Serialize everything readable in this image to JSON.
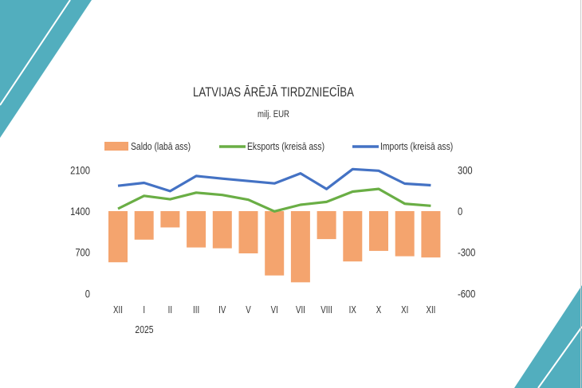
{
  "colors": {
    "saldo": "#F4A46E",
    "eksports": "#6AAE45",
    "imports": "#4472C4",
    "accent": "#52AEBE"
  },
  "chart_data": {
    "type": "bar+line",
    "title": "LATVIJAS ĀRĒJĀ TIRDZNIECĪBA",
    "subtitle": "milj. EUR",
    "categories": [
      "XII",
      "I",
      "II",
      "III",
      "IV",
      "V",
      "VI",
      "VII",
      "VIII",
      "IX",
      "X",
      "XI",
      "XII"
    ],
    "year_label": "2025",
    "left_axis": {
      "ticks": [
        "0",
        "700",
        "1400",
        "2100"
      ],
      "range": [
        0,
        2100
      ]
    },
    "right_axis": {
      "ticks": [
        "-600",
        "-300",
        "0",
        "300"
      ],
      "range": [
        -600,
        300
      ]
    },
    "legend_position": "top",
    "series": [
      {
        "name": "Saldo (labā ass)",
        "type": "bar",
        "axis": "right",
        "values": [
          -373,
          -208,
          -119,
          -265,
          -271,
          -308,
          -469,
          -519,
          -204,
          -367,
          -290,
          -329,
          -338
        ]
      },
      {
        "name": "Eksports (kreisā ass)",
        "type": "line",
        "axis": "left",
        "values": [
          1440,
          1660,
          1602,
          1714,
          1674,
          1593,
          1396,
          1508,
          1557,
          1732,
          1777,
          1526,
          1490
        ]
      },
      {
        "name": "Imports (kreisā ass)",
        "type": "line",
        "axis": "left",
        "values": [
          1831,
          1880,
          1740,
          1997,
          1952,
          1912,
          1871,
          2042,
          1776,
          2113,
          2087,
          1867,
          1840
        ]
      }
    ]
  }
}
